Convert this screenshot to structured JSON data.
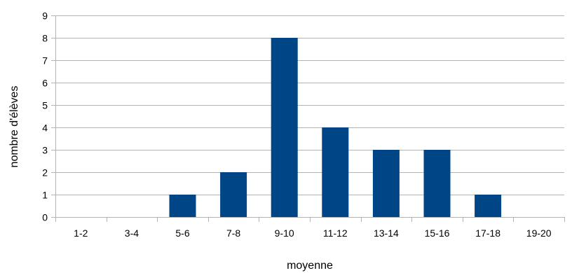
{
  "chart_data": {
    "type": "bar",
    "categories": [
      "1-2",
      "3-4",
      "5-6",
      "7-8",
      "9-10",
      "11-12",
      "13-14",
      "15-16",
      "17-18",
      "19-20"
    ],
    "values": [
      0,
      0,
      1,
      2,
      8,
      4,
      3,
      3,
      1,
      0
    ],
    "title": "",
    "xlabel": "moyenne",
    "ylabel": "nombre d'élèves",
    "ylim": [
      0,
      9
    ],
    "yticks": [
      "0",
      "1",
      "2",
      "3",
      "4",
      "5",
      "6",
      "7",
      "8",
      "9"
    ],
    "grid": "horizontal",
    "legend": "none",
    "bar_color": "#004586",
    "grid_color": "#b3b3b3"
  }
}
